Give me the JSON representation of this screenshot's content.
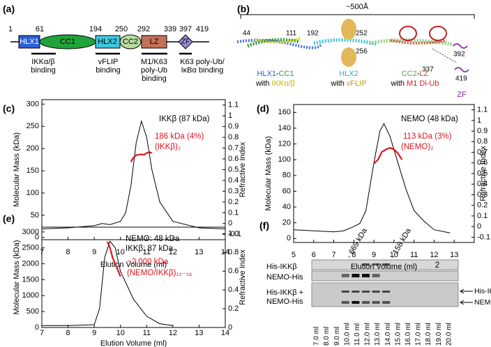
{
  "panel_labels": [
    "(a)",
    "(b)",
    "(c)",
    "(d)",
    "(e)",
    "(f)"
  ],
  "domain_map": {
    "positions": [
      "1",
      "61",
      "194",
      "250",
      "292",
      "339",
      "397",
      "419"
    ],
    "domains": [
      "HLX1",
      "CC1",
      "HLX2",
      "CC2",
      "LZ",
      "ZF"
    ],
    "binding": [
      [
        "IKKα/β",
        "binding"
      ],
      [
        "vFLIP",
        "binding"
      ],
      [
        "M1/K63",
        "poly-Ub",
        "binding"
      ],
      [
        "K63 poly-Ub/",
        "IκBα binding"
      ]
    ]
  },
  "structure": {
    "length": "~500Å",
    "residues": [
      "44",
      "111",
      "192",
      "252",
      "256",
      "337",
      "392",
      "419"
    ],
    "labels": [
      [
        [
          "HLX1",
          "-",
          "CC1"
        ],
        [
          "with",
          "IKKα/β"
        ]
      ],
      [
        [
          "HLX2"
        ],
        [
          "with",
          "vFLIP"
        ]
      ],
      [
        [
          "CC2",
          "-",
          "LZ"
        ],
        [
          "with",
          "M1 Di-Ub"
        ]
      ],
      [
        [
          "ZF"
        ]
      ]
    ]
  },
  "chart_data": [
    {
      "type": "line",
      "xlabel": "Elution Volume (ml)",
      "ylabel": "Molecular Mass (kDa)",
      "y2label": "Refractive Index",
      "xlim": [
        7,
        14
      ],
      "xticks": [
        7,
        8,
        9,
        10,
        11,
        12,
        13,
        14
      ],
      "ylim": [
        -5,
        310
      ],
      "yticks": [
        0,
        50,
        100,
        150,
        200,
        250,
        300
      ],
      "y2lim": [
        -0.15,
        1.15
      ],
      "y2ticks": [
        -0.1,
        0,
        0.1,
        0.2,
        0.3,
        0.4,
        0.5,
        0.6,
        0.7,
        0.8,
        0.9,
        1,
        1.1
      ],
      "series": [
        {
          "axis": "y2",
          "color": "#000000",
          "x": [
            7,
            8,
            9,
            9.3,
            9.6,
            10,
            10.2,
            10.4,
            10.6,
            10.8,
            11,
            11.2,
            11.5,
            12,
            13,
            14
          ],
          "values": [
            -0.05,
            -0.04,
            -0.02,
            0,
            -0.01,
            0.02,
            0.1,
            0.35,
            0.75,
            0.95,
            0.8,
            0.5,
            0.2,
            0.02,
            -0.04,
            -0.05
          ]
        },
        {
          "color": "#e0141e",
          "x": [
            10.4,
            10.5,
            10.6,
            10.7,
            10.8,
            10.9,
            11,
            11.1,
            11.2
          ],
          "values": [
            170,
            180,
            185,
            186,
            187,
            186,
            190,
            192,
            190
          ]
        }
      ],
      "annotations": [
        {
          "text": "IKKβ (87 kDa)",
          "color": "#000000"
        },
        {
          "text": "186 kDa (4%)",
          "color": "#e0141e"
        },
        {
          "text": "(IKKβ)₂",
          "color": "#e0141e"
        }
      ]
    },
    {
      "type": "line",
      "xlabel": "Elution Volume (ml)",
      "ylabel": "Molecular Mass (kDa)",
      "y2label": "Refractive Index",
      "xlim": [
        5,
        14
      ],
      "xticks": [
        5,
        6,
        7,
        8,
        9,
        10,
        11,
        12,
        13
      ],
      "ylim": [
        -5,
        170
      ],
      "yticks": [
        0,
        20,
        40,
        60,
        80,
        100,
        120,
        140,
        160
      ],
      "y2lim": [
        -0.15,
        1.15
      ],
      "y2ticks": [
        -0.1,
        0,
        0.1,
        0.2,
        0.3,
        0.4,
        0.5,
        0.6,
        0.7,
        0.8,
        0.9,
        1,
        1.1
      ],
      "series": [
        {
          "axis": "y2",
          "color": "#000000",
          "x": [
            5,
            6,
            7,
            7.5,
            8,
            8.3,
            8.6,
            9,
            9.3,
            9.5,
            9.8,
            10.2,
            10.6,
            11,
            11.5,
            12,
            12.8
          ],
          "values": [
            -0.03,
            -0.04,
            -0.05,
            -0.04,
            0,
            0.03,
            0.15,
            0.6,
            0.9,
            0.97,
            0.85,
            0.6,
            0.35,
            0.15,
            0.05,
            -0.03,
            -0.06
          ]
        },
        {
          "color": "#e0141e",
          "x": [
            9,
            9.2,
            9.4,
            9.6,
            9.8,
            10,
            10.2,
            10.4
          ],
          "values": [
            95,
            100,
            110,
            113,
            115,
            113,
            108,
            100
          ]
        }
      ],
      "annotations": [
        {
          "text": "NEMO (48 kDa)",
          "color": "#000000"
        },
        {
          "text": "113 kDa (3%)",
          "color": "#e0141e"
        },
        {
          "text": "(NEMO)₂",
          "color": "#e0141e"
        },
        {
          "text": "2",
          "color": "#000000"
        }
      ]
    },
    {
      "type": "line",
      "xlabel": "Elution Volume (ml)",
      "ylabel": "Molecular Mass (kDa)",
      "y2label": "Refractive Index",
      "xlim": [
        7,
        14
      ],
      "xticks": [
        7,
        8,
        9,
        10,
        11,
        12,
        13,
        14
      ],
      "ylim": [
        0,
        3150
      ],
      "yticks": [
        0,
        500,
        1000,
        1500,
        2000,
        2500,
        3000
      ],
      "y2lim": [
        0,
        1.07
      ],
      "y2ticks": [
        0,
        0.2,
        0.4,
        0.6,
        0.8,
        {
          "value": 1,
          "label": "1.0"
        }
      ],
      "series": [
        {
          "axis": "y2",
          "color": "#000000",
          "x": [
            7,
            8,
            9,
            9.2,
            9.4,
            9.6,
            9.8,
            10,
            10.5,
            11,
            11.5,
            12
          ],
          "values": [
            0.02,
            0.02,
            0.03,
            0.2,
            0.75,
            0.92,
            0.85,
            0.6,
            0.3,
            0.12,
            0.04,
            0.02
          ]
        },
        {
          "color": "#e0141e",
          "x": [
            9.5,
            9.6,
            9.7,
            9.8,
            9.9,
            10
          ],
          "values": [
            2700,
            2500,
            2200,
            2000,
            1800,
            1600
          ]
        }
      ],
      "annotations": [
        {
          "text": "NEMO: 48 kDa",
          "color": "#000000"
        },
        {
          "text": "IKKβ: 87 kDa",
          "color": "#000000"
        },
        {
          "text": "~2,000 kDa",
          "color": "#e0141e"
        },
        {
          "text": "(NEMO/IKKβ)₁₂₋₁₆",
          "color": "#e0141e"
        }
      ]
    }
  ],
  "gel": {
    "row_labels": [
      "His-IKKβ",
      "NEMO-His",
      "His-IKKβ +",
      "NEMO-His"
    ],
    "markers": [
      "- 669 kDa",
      "- 158 kDa"
    ],
    "arrows": [
      "His-IKKβ FL",
      "NEMO FL-His"
    ],
    "lanes": [
      "7.0 ml",
      "8.0 ml",
      "9.0 ml",
      "10.0 ml",
      "11.0 ml",
      "12.0 ml",
      "13.0 ml",
      "14.0 ml",
      "15.0 ml",
      "16.0 ml",
      "17.0 ml",
      "18.0 ml",
      "19.0 ml",
      "20.0 ml"
    ]
  }
}
